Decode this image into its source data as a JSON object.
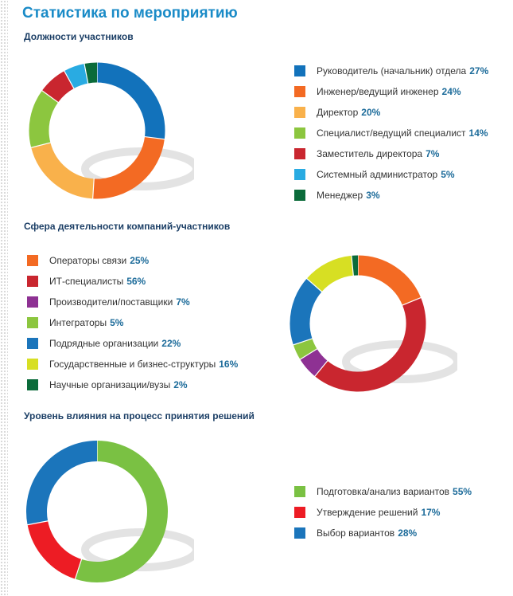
{
  "page": {
    "title": "Статистика по мероприятию"
  },
  "chart_data": [
    {
      "type": "pie",
      "title": "Должности участников",
      "series": [
        {
          "label": "Руководитель (начальник) отдела",
          "value": 27,
          "value_label": "27%",
          "color": "#1272bb"
        },
        {
          "label": "Инженер/ведущий инженер",
          "value": 24,
          "value_label": "24%",
          "color": "#f36a23"
        },
        {
          "label": "Директор",
          "value": 20,
          "value_label": "20%",
          "color": "#f9b14b"
        },
        {
          "label": "Специалист/ведущий специалист",
          "value": 14,
          "value_label": "14%",
          "color": "#8cc63f"
        },
        {
          "label": "Заместитель директора",
          "value": 7,
          "value_label": "7%",
          "color": "#c9262f"
        },
        {
          "label": "Системный администратор",
          "value": 5,
          "value_label": "5%",
          "color": "#29abe2"
        },
        {
          "label": "Менеджер",
          "value": 3,
          "value_label": "3%",
          "color": "#0b6b3a"
        }
      ]
    },
    {
      "type": "pie",
      "title": "Сфера деятельности компаний-участников",
      "series": [
        {
          "label": "Операторы связи",
          "value": 25,
          "value_label": "25%",
          "color": "#f36a23"
        },
        {
          "label": "ИТ-специалисты",
          "value": 56,
          "value_label": "56%",
          "color": "#c9262f"
        },
        {
          "label": "Производители/поставщики",
          "value": 7,
          "value_label": "7%",
          "color": "#8e3193"
        },
        {
          "label": "Интеграторы",
          "value": 5,
          "value_label": "5%",
          "color": "#8cc63f"
        },
        {
          "label": "Подрядные организации",
          "value": 22,
          "value_label": "22%",
          "color": "#1b75bb"
        },
        {
          "label": "Государственные и бизнес-структуры",
          "value": 16,
          "value_label": "16%",
          "color": "#d7df23"
        },
        {
          "label": "Научные организации/вузы",
          "value": 2,
          "value_label": "2%",
          "color": "#0b6b3a"
        }
      ]
    },
    {
      "type": "pie",
      "title": "Уровень влияния на процесс принятия решений",
      "series": [
        {
          "label": "Подготовка/анализ вариантов",
          "value": 55,
          "value_label": "55%",
          "color": "#7ac143"
        },
        {
          "label": "Утверждение решений",
          "value": 17,
          "value_label": "17%",
          "color": "#ed1c24"
        },
        {
          "label": "Выбор вариантов",
          "value": 28,
          "value_label": "28%",
          "color": "#1b75bb"
        }
      ]
    }
  ]
}
